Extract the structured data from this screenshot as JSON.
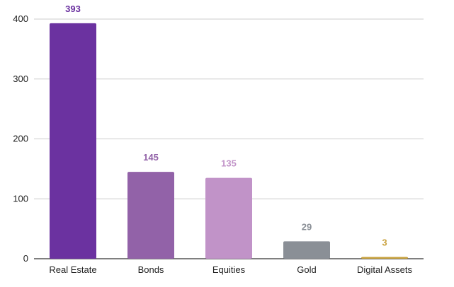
{
  "chart_data": {
    "type": "bar",
    "categories": [
      "Real Estate",
      "Bonds",
      "Equities",
      "Gold",
      "Digital Assets"
    ],
    "values": [
      393,
      145,
      135,
      29,
      3
    ],
    "colors": [
      "#6b32a0",
      "#9262a8",
      "#c193c8",
      "#8a8f96",
      "#c9a23e"
    ],
    "label_colors": [
      "#6b32a0",
      "#9262a8",
      "#c193c8",
      "#8a8f96",
      "#c9a23e"
    ],
    "yticks": [
      0,
      100,
      200,
      300,
      400
    ],
    "ylim": [
      0,
      400
    ],
    "grid": true,
    "title": "",
    "xlabel": "",
    "ylabel": ""
  }
}
